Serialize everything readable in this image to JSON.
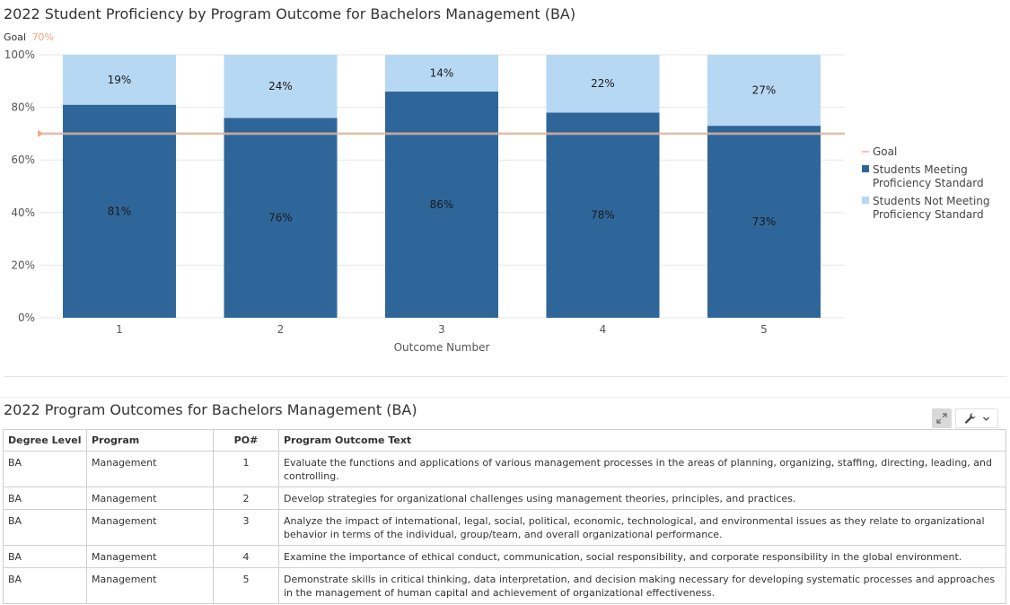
{
  "chart_title": "2022 Student Proficiency by Program Outcome for Bachelors Management (BA)",
  "goal_caption": {
    "label": "Goal",
    "value": "70%"
  },
  "colors": {
    "meeting": "#2f6699",
    "not_meeting": "#b7d8f2",
    "goal": "#f4a582",
    "grid": "#e6e6e6",
    "goal_line_halo": "#c7c7c7"
  },
  "chart_data": {
    "type": "bar",
    "stacked": true,
    "title": "2022 Student Proficiency by Program Outcome for Bachelors Management (BA)",
    "xlabel": "Outcome Number",
    "ylabel": "",
    "ylim": [
      0,
      100
    ],
    "yticks": [
      "0%",
      "20%",
      "40%",
      "60%",
      "80%",
      "100%"
    ],
    "categories": [
      "1",
      "2",
      "3",
      "4",
      "5"
    ],
    "series": [
      {
        "name": "Students Meeting Proficiency Standard",
        "values": [
          81,
          76,
          86,
          78,
          73
        ],
        "labels": [
          "81%",
          "76%",
          "86%",
          "78%",
          "73%"
        ]
      },
      {
        "name": "Students Not Meeting Proficiency Standard",
        "values": [
          19,
          24,
          14,
          22,
          27
        ],
        "labels": [
          "19%",
          "24%",
          "14%",
          "22%",
          "27%"
        ]
      }
    ],
    "goal": {
      "name": "Goal",
      "value": 70
    },
    "legend": {
      "position": "right",
      "items": [
        {
          "lines": [
            "Goal"
          ],
          "key": "goal"
        },
        {
          "lines": [
            "Students Meeting",
            "Proficiency Standard"
          ],
          "key": "meeting"
        },
        {
          "lines": [
            "Students Not Meeting",
            "Proficiency Standard"
          ],
          "key": "not_meeting"
        }
      ]
    },
    "grid": true
  },
  "table": {
    "title": "2022 Program Outcomes for Bachelors Management (BA)",
    "headers": [
      "Degree Level",
      "Program",
      "PO#",
      "Program Outcome Text"
    ],
    "rows": [
      [
        "BA",
        "Management",
        "1",
        "Evaluate the functions and applications of various management processes in the areas of planning, organizing, staffing, directing, leading, and controlling."
      ],
      [
        "BA",
        "Management",
        "2",
        "Develop strategies for organizational challenges using management theories, principles, and practices."
      ],
      [
        "BA",
        "Management",
        "3",
        "Analyze the impact of international, legal, social, political, economic, technological, and environmental issues as they relate to organizational behavior in terms of the individual, group/team, and overall organizational performance."
      ],
      [
        "BA",
        "Management",
        "4",
        "Examine the importance of ethical conduct, communication, social responsibility, and corporate responsibility in the global environment."
      ],
      [
        "BA",
        "Management",
        "5",
        "Demonstrate skills in critical thinking, data interpretation, and decision making necessary for developing systematic processes and approaches in the management of human capital and achievement of organizational effectiveness."
      ]
    ]
  },
  "icons": {
    "expand": "expand-icon",
    "tools": "wrench-icon",
    "menu": "chevron-down-icon"
  }
}
